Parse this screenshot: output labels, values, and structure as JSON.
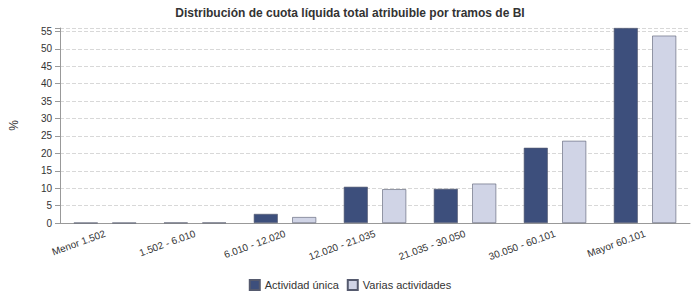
{
  "chart_data": {
    "type": "bar",
    "title": "Distribución de cuota líquida total atribuible por tramos de BI",
    "y_label": "%",
    "categories": [
      "Menor 1.502",
      "1.502 - 6.010",
      "6.010 - 12.020",
      "12.020 - 21.035",
      "21.035 - 30.050",
      "30.050 - 60.101",
      "Mayor 60.101"
    ],
    "series": [
      {
        "name": "Actividad única",
        "color": "#3d4f7c",
        "values": [
          0.05,
          0.1,
          2.6,
          10.4,
          9.8,
          21.6,
          56
        ]
      },
      {
        "name": "Varias actividades",
        "color": "#d0d4e6",
        "values": [
          0.05,
          0.1,
          1.7,
          9.7,
          11.3,
          23.6,
          53.8
        ]
      }
    ],
    "ylim": [
      0,
      56
    ],
    "yticks": [
      0,
      5,
      10,
      15,
      20,
      25,
      30,
      35,
      40,
      45,
      50,
      55
    ],
    "grid": true,
    "legend": "bottom"
  }
}
